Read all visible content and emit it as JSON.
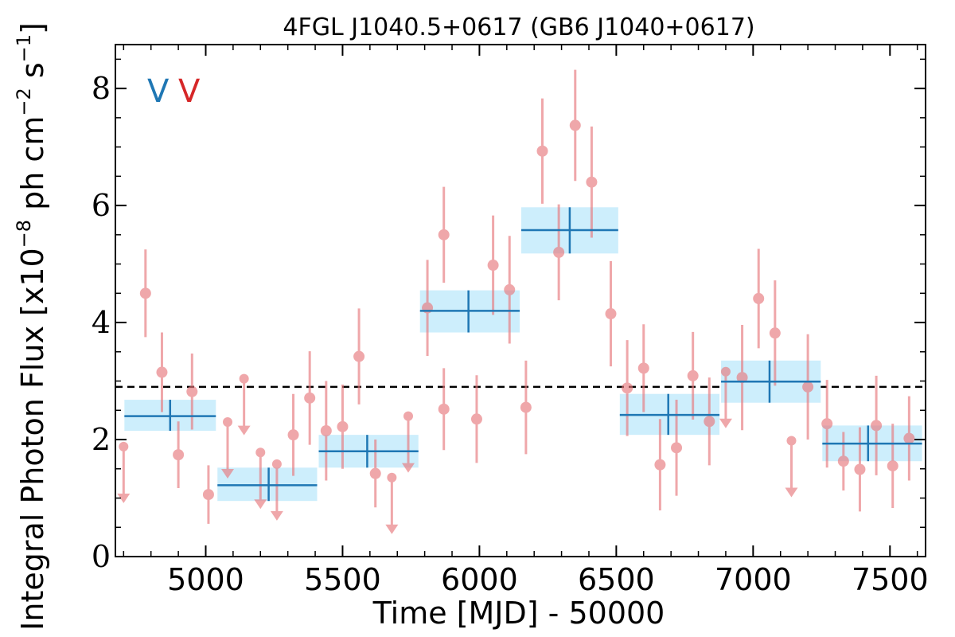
{
  "chart_data": {
    "type": "scatter",
    "title": "4FGL J1040.5+0617 (GB6 J1040+0617)",
    "xlabel": "Time [MJD] - 50000",
    "ylabel": "Integral Photon Flux [x10",
    "ylabel_exp1": "−8",
    "ylabel_mid": " ph cm",
    "ylabel_exp2": "−2",
    "ylabel_mid2": " s",
    "ylabel_exp3": "−1",
    "ylabel_end": "]",
    "xlim": [
      4670,
      7630
    ],
    "ylim": [
      0,
      8.75
    ],
    "xticks": [
      "5000",
      "5500",
      "6000",
      "6500",
      "7000",
      "7500"
    ],
    "yticks": [
      "0",
      "2",
      "4",
      "6",
      "8"
    ],
    "markers": [
      {
        "text": "V",
        "color": "#1f77b4"
      },
      {
        "text": "V",
        "color": "#d62728"
      }
    ],
    "reference_line": {
      "y": 2.9,
      "style": "dashed",
      "color": "#000000"
    },
    "series": [
      {
        "name": "",
        "kind": "detections",
        "color": "#e8797d",
        "points": [
          {
            "x": 4780,
            "y": 4.5,
            "err": 0.75
          },
          {
            "x": 4840,
            "y": 3.15,
            "err": 0.68
          },
          {
            "x": 4900,
            "y": 1.74,
            "err": 0.57
          },
          {
            "x": 4950,
            "y": 2.82,
            "err": 0.65
          },
          {
            "x": 5010,
            "y": 1.06,
            "err": 0.5
          },
          {
            "x": 5320,
            "y": 2.08,
            "err": 0.7
          },
          {
            "x": 5380,
            "y": 2.71,
            "err": 0.8
          },
          {
            "x": 5440,
            "y": 2.15,
            "err": 0.85
          },
          {
            "x": 5500,
            "y": 2.22,
            "err": 0.72
          },
          {
            "x": 5560,
            "y": 3.42,
            "err": 0.82
          },
          {
            "x": 5620,
            "y": 1.42,
            "err": 0.58
          },
          {
            "x": 5810,
            "y": 4.25,
            "err": 0.82
          },
          {
            "x": 5870,
            "y": 2.52,
            "err": 0.7
          },
          {
            "x": 5870,
            "y": 5.5,
            "err": 0.82
          },
          {
            "x": 5990,
            "y": 2.35,
            "err": 0.75
          },
          {
            "x": 6050,
            "y": 4.98,
            "err": 0.85
          },
          {
            "x": 6110,
            "y": 4.56,
            "err": 0.92
          },
          {
            "x": 6170,
            "y": 2.55,
            "err": 0.8
          },
          {
            "x": 6230,
            "y": 6.93,
            "err": 0.9
          },
          {
            "x": 6290,
            "y": 5.2,
            "err": 0.82
          },
          {
            "x": 6350,
            "y": 7.37,
            "err": 0.95
          },
          {
            "x": 6410,
            "y": 6.4,
            "err": 0.95
          },
          {
            "x": 6480,
            "y": 4.15,
            "err": 0.9
          },
          {
            "x": 6540,
            "y": 2.88,
            "err": 0.82
          },
          {
            "x": 6600,
            "y": 3.22,
            "err": 0.75
          },
          {
            "x": 6660,
            "y": 1.57,
            "err": 0.78
          },
          {
            "x": 6720,
            "y": 1.86,
            "err": 0.82
          },
          {
            "x": 6780,
            "y": 3.09,
            "err": 0.75
          },
          {
            "x": 6840,
            "y": 2.31,
            "err": 0.75
          },
          {
            "x": 6960,
            "y": 3.06,
            "err": 0.9
          },
          {
            "x": 7020,
            "y": 4.41,
            "err": 0.85
          },
          {
            "x": 7080,
            "y": 3.82,
            "err": 0.9
          },
          {
            "x": 7200,
            "y": 2.9,
            "err": 0.9
          },
          {
            "x": 7270,
            "y": 2.27,
            "err": 0.75
          },
          {
            "x": 7330,
            "y": 1.63,
            "err": 0.5
          },
          {
            "x": 7390,
            "y": 1.49,
            "err": 0.72
          },
          {
            "x": 7450,
            "y": 2.24,
            "err": 0.85
          },
          {
            "x": 7510,
            "y": 1.55,
            "err": 0.72
          },
          {
            "x": 7570,
            "y": 2.02,
            "err": 0.72
          }
        ]
      },
      {
        "name": "",
        "kind": "upper_limits",
        "color": "#e8797d",
        "points": [
          {
            "x": 4700,
            "y": 1.88
          },
          {
            "x": 5080,
            "y": 2.3
          },
          {
            "x": 5140,
            "y": 3.04
          },
          {
            "x": 5200,
            "y": 1.78
          },
          {
            "x": 5260,
            "y": 1.58
          },
          {
            "x": 5680,
            "y": 1.35
          },
          {
            "x": 5740,
            "y": 2.4
          },
          {
            "x": 6900,
            "y": 3.16
          },
          {
            "x": 7140,
            "y": 1.98
          }
        ]
      },
      {
        "name": "",
        "kind": "binned",
        "color": "#1f77b4",
        "fill": "#cdeefc",
        "points": [
          {
            "x0": 4700,
            "x1": 5040,
            "y": 2.4,
            "y_lo": 2.15,
            "y_hi": 2.68,
            "x": 4870
          },
          {
            "x0": 5040,
            "x1": 5410,
            "y": 1.22,
            "y_lo": 0.95,
            "y_hi": 1.52,
            "x": 5230
          },
          {
            "x0": 5410,
            "x1": 5780,
            "y": 1.8,
            "y_lo": 1.52,
            "y_hi": 2.08,
            "x": 5590
          },
          {
            "x0": 5780,
            "x1": 6150,
            "y": 4.2,
            "y_lo": 3.83,
            "y_hi": 4.55,
            "x": 5960
          },
          {
            "x0": 6150,
            "x1": 6510,
            "y": 5.58,
            "y_lo": 5.18,
            "y_hi": 5.97,
            "x": 6330
          },
          {
            "x0": 6510,
            "x1": 6880,
            "y": 2.42,
            "y_lo": 2.08,
            "y_hi": 2.78,
            "x": 6690
          },
          {
            "x0": 6880,
            "x1": 7250,
            "y": 2.99,
            "y_lo": 2.63,
            "y_hi": 3.35,
            "x": 7060
          },
          {
            "x0": 7250,
            "x1": 7620,
            "y": 1.93,
            "y_lo": 1.63,
            "y_hi": 2.24,
            "x": 7420
          }
        ]
      }
    ]
  }
}
